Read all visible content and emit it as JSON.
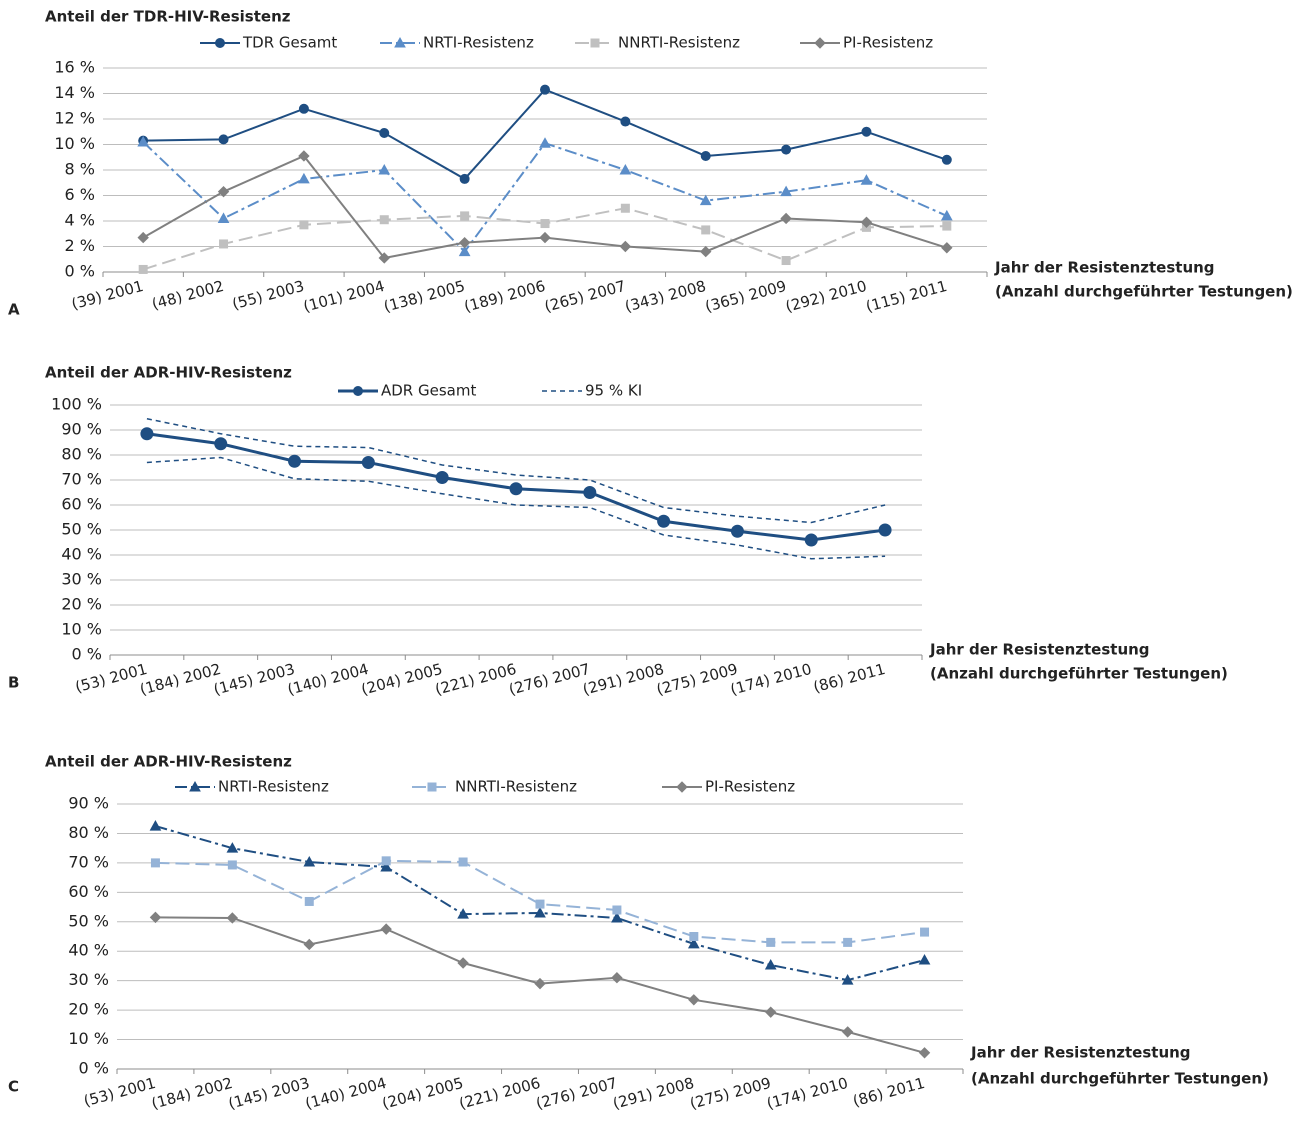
{
  "chart_data": [
    {
      "type": "line",
      "panel": "A",
      "title": "Anteil der TDR-HIV-Resistenz",
      "xlabel": [
        "Jahr der Resistenztestung",
        "(Anzahl durchgeführter Testungen)"
      ],
      "categories": [
        "(39) 2001",
        "(48) 2002",
        "(55) 2003",
        "(101) 2004",
        "(138) 2005",
        "(189) 2006",
        "(265) 2007",
        "(343) 2008",
        "(365) 2009",
        "(292) 2010",
        "(115) 2011"
      ],
      "ylim": [
        0,
        16
      ],
      "yticks": [
        {
          "value": 0,
          "label": "0 %"
        },
        {
          "value": 2,
          "label": "2 %"
        },
        {
          "value": 4,
          "label": "4 %"
        },
        {
          "value": 6,
          "label": "6 %"
        },
        {
          "value": 8,
          "label": "8 %"
        },
        {
          "value": 10,
          "label": "10 %"
        },
        {
          "value": 12,
          "label": "12 %"
        },
        {
          "value": 14,
          "label": "14 %"
        },
        {
          "value": 16,
          "label": "16 %"
        }
      ],
      "grid": true,
      "series": [
        {
          "name": "TDR Gesamt",
          "color": "#1f4e82",
          "marker": "circle",
          "dash": "solid",
          "values": [
            10.3,
            10.4,
            12.8,
            10.9,
            7.3,
            14.3,
            11.8,
            9.1,
            9.6,
            11.0,
            8.8
          ]
        },
        {
          "name": "NRTI-Resistenz",
          "color": "#5b8dc8",
          "marker": "triangle",
          "dash": "dashdot",
          "values": [
            10.2,
            4.2,
            7.3,
            8.0,
            1.6,
            10.1,
            8.0,
            5.6,
            6.3,
            7.2,
            4.4
          ]
        },
        {
          "name": "NNRTI-Resistenz",
          "color": "#c0c0c0",
          "marker": "square",
          "dash": "longdash",
          "values": [
            0.2,
            2.2,
            3.7,
            4.1,
            4.4,
            3.8,
            5.0,
            3.3,
            0.9,
            3.5,
            3.6
          ]
        },
        {
          "name": "PI-Resistenz",
          "color": "#808080",
          "marker": "diamond",
          "dash": "solid",
          "values": [
            2.7,
            6.3,
            9.1,
            1.1,
            2.3,
            2.7,
            2.0,
            1.6,
            4.2,
            3.9,
            1.9
          ]
        }
      ]
    },
    {
      "type": "line",
      "panel": "B",
      "title": "Anteil der ADR-HIV-Resistenz",
      "xlabel": [
        "Jahr der Resistenztestung",
        "(Anzahl durchgeführter Testungen)"
      ],
      "categories": [
        "(53) 2001",
        "(184) 2002",
        "(145) 2003",
        "(140) 2004",
        "(204) 2005",
        "(221) 2006",
        "(276) 2007",
        "(291) 2008",
        "(275) 2009",
        "(174) 2010",
        "(86) 2011"
      ],
      "ylim": [
        0,
        100
      ],
      "yticks": [
        {
          "value": 0,
          "label": "0 %"
        },
        {
          "value": 10,
          "label": "10 %"
        },
        {
          "value": 20,
          "label": "20 %"
        },
        {
          "value": 30,
          "label": "30 %"
        },
        {
          "value": 40,
          "label": "40 %"
        },
        {
          "value": 50,
          "label": "50 %"
        },
        {
          "value": 60,
          "label": "60 %"
        },
        {
          "value": 70,
          "label": "70 %"
        },
        {
          "value": 80,
          "label": "80 %"
        },
        {
          "value": 90,
          "label": "90 %"
        },
        {
          "value": 100,
          "label": "100 %"
        }
      ],
      "grid": true,
      "series": [
        {
          "name": "ADR Gesamt",
          "color": "#1f4e82",
          "marker": "circle",
          "dash": "solid",
          "values": [
            88.5,
            84.5,
            77.5,
            77,
            71,
            66.5,
            65,
            53.5,
            49.5,
            46,
            50
          ]
        }
      ],
      "ci": {
        "name": "95 % KI",
        "color": "#1f4e82",
        "dash": "dash",
        "upper": [
          94.5,
          88.5,
          83.5,
          83,
          76,
          72,
          70,
          59,
          55.5,
          53,
          60
        ],
        "lower": [
          77,
          79,
          70.5,
          69.5,
          64.5,
          60,
          59,
          48,
          44,
          38.5,
          39.5
        ]
      }
    },
    {
      "type": "line",
      "panel": "C",
      "title": "Anteil der ADR-HIV-Resistenz",
      "xlabel": [
        "Jahr der Resistenztestung",
        "(Anzahl durchgeführter Testungen)"
      ],
      "categories": [
        "(53) 2001",
        "(184) 2002",
        "(145) 2003",
        "(140) 2004",
        "(204) 2005",
        "(221) 2006",
        "(276) 2007",
        "(291) 2008",
        "(275) 2009",
        "(174) 2010",
        "(86) 2011"
      ],
      "ylim": [
        0,
        90
      ],
      "yticks": [
        {
          "value": 0,
          "label": "0 %"
        },
        {
          "value": 10,
          "label": "10 %"
        },
        {
          "value": 20,
          "label": "20 %"
        },
        {
          "value": 30,
          "label": "30 %"
        },
        {
          "value": 40,
          "label": "40 %"
        },
        {
          "value": 50,
          "label": "50 %"
        },
        {
          "value": 60,
          "label": "60 %"
        },
        {
          "value": 70,
          "label": "70 %"
        },
        {
          "value": 80,
          "label": "80 %"
        },
        {
          "value": 90,
          "label": "90 %"
        }
      ],
      "grid": true,
      "series": [
        {
          "name": "NRTI-Resistenz",
          "color": "#1f4e82",
          "marker": "triangle",
          "dash": "dashdot",
          "values": [
            82.5,
            75,
            70.3,
            68.6,
            52.6,
            53,
            51.3,
            42.5,
            35.3,
            30.2,
            37
          ]
        },
        {
          "name": "NNRTI-Resistenz",
          "color": "#95b3d7",
          "marker": "square",
          "dash": "longdash",
          "values": [
            70,
            69.3,
            56.9,
            70.7,
            70.3,
            56,
            54,
            45,
            43,
            43,
            46.5
          ]
        },
        {
          "name": "PI-Resistenz",
          "color": "#808080",
          "marker": "diamond",
          "dash": "solid",
          "values": [
            51.5,
            51.3,
            42.3,
            47.5,
            36,
            29,
            31,
            23.5,
            19.3,
            12.6,
            5.5
          ]
        }
      ]
    }
  ]
}
